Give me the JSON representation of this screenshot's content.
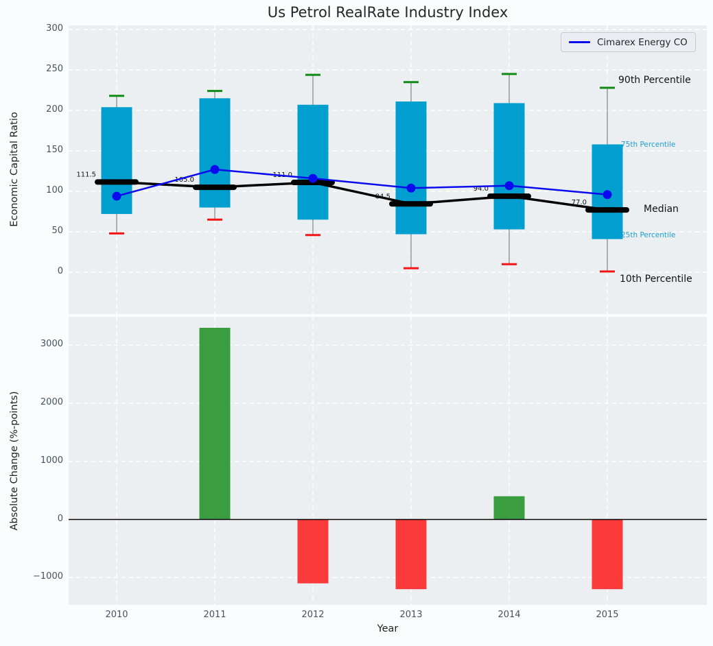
{
  "title": "Us Petrol RealRate Industry Index",
  "legend_label": "Cimarex Energy CO",
  "axis_labels": {
    "top_ylabel": "Economic Capital Ratio",
    "bottom_ylabel": "Absolute Change (%-points)",
    "xlabel": "Year"
  },
  "annotations": {
    "p90": "90th Percentile",
    "p75": "75th Percentile",
    "median": "Median",
    "p25": "25th Percentile",
    "p10": "10th Percentile"
  },
  "colors": {
    "box_fill": "#009fd0",
    "whisker": "#808080",
    "cap_high": "#108a16",
    "cap_low": "#f51414",
    "median": "#000000",
    "company_line": "#0a0aee",
    "bar_positive": "#3a9e40",
    "bar_negative": "#fb3b3b",
    "plot_bg": "#eceff1",
    "grid": "#ffffff",
    "tick": "#435363",
    "percentile_label_accent": "#1f9ecf",
    "zero_line": "#000000"
  },
  "chart_data": [
    {
      "type": "box-percentile",
      "title": "Us Petrol RealRate Industry Index",
      "ylabel": "Economic Capital Ratio",
      "x": [
        "2010",
        "2011",
        "2012",
        "2013",
        "2014",
        "2015"
      ],
      "yticks": [
        0,
        50,
        100,
        150,
        200,
        250,
        300
      ],
      "ylim": [
        -52,
        305
      ],
      "grid": true,
      "legend_position": "upper right",
      "legend_entries": [
        "Cimarex Energy CO"
      ],
      "series": {
        "p90": [
          218,
          224,
          244,
          235,
          245,
          228
        ],
        "p75": [
          204,
          215,
          207,
          211,
          209,
          158
        ],
        "median": [
          111.5,
          105.0,
          111.0,
          84.5,
          94.0,
          77.0
        ],
        "p25": [
          72,
          80,
          65,
          47,
          53,
          41
        ],
        "p10": [
          48,
          65,
          46,
          5,
          10,
          1
        ],
        "company": [
          94,
          127,
          116,
          104,
          107,
          96
        ]
      },
      "median_labels": [
        "111.5",
        "105.0",
        "111.0",
        "84.5",
        "94.0",
        "77.0"
      ],
      "right_labels": [
        "90th Percentile",
        "75th Percentile",
        "Median",
        "25th Percentile",
        "10th Percentile"
      ]
    },
    {
      "type": "bar",
      "ylabel": "Absolute Change (%-points)",
      "xlabel": "Year",
      "categories": [
        "2010",
        "2011",
        "2012",
        "2013",
        "2014",
        "2015"
      ],
      "values": [
        null,
        3300,
        -1100,
        -1200,
        400,
        -1200
      ],
      "yticks": [
        -1000,
        0,
        1000,
        2000,
        3000
      ],
      "ylim": [
        -1470,
        3490
      ],
      "grid": true
    }
  ]
}
